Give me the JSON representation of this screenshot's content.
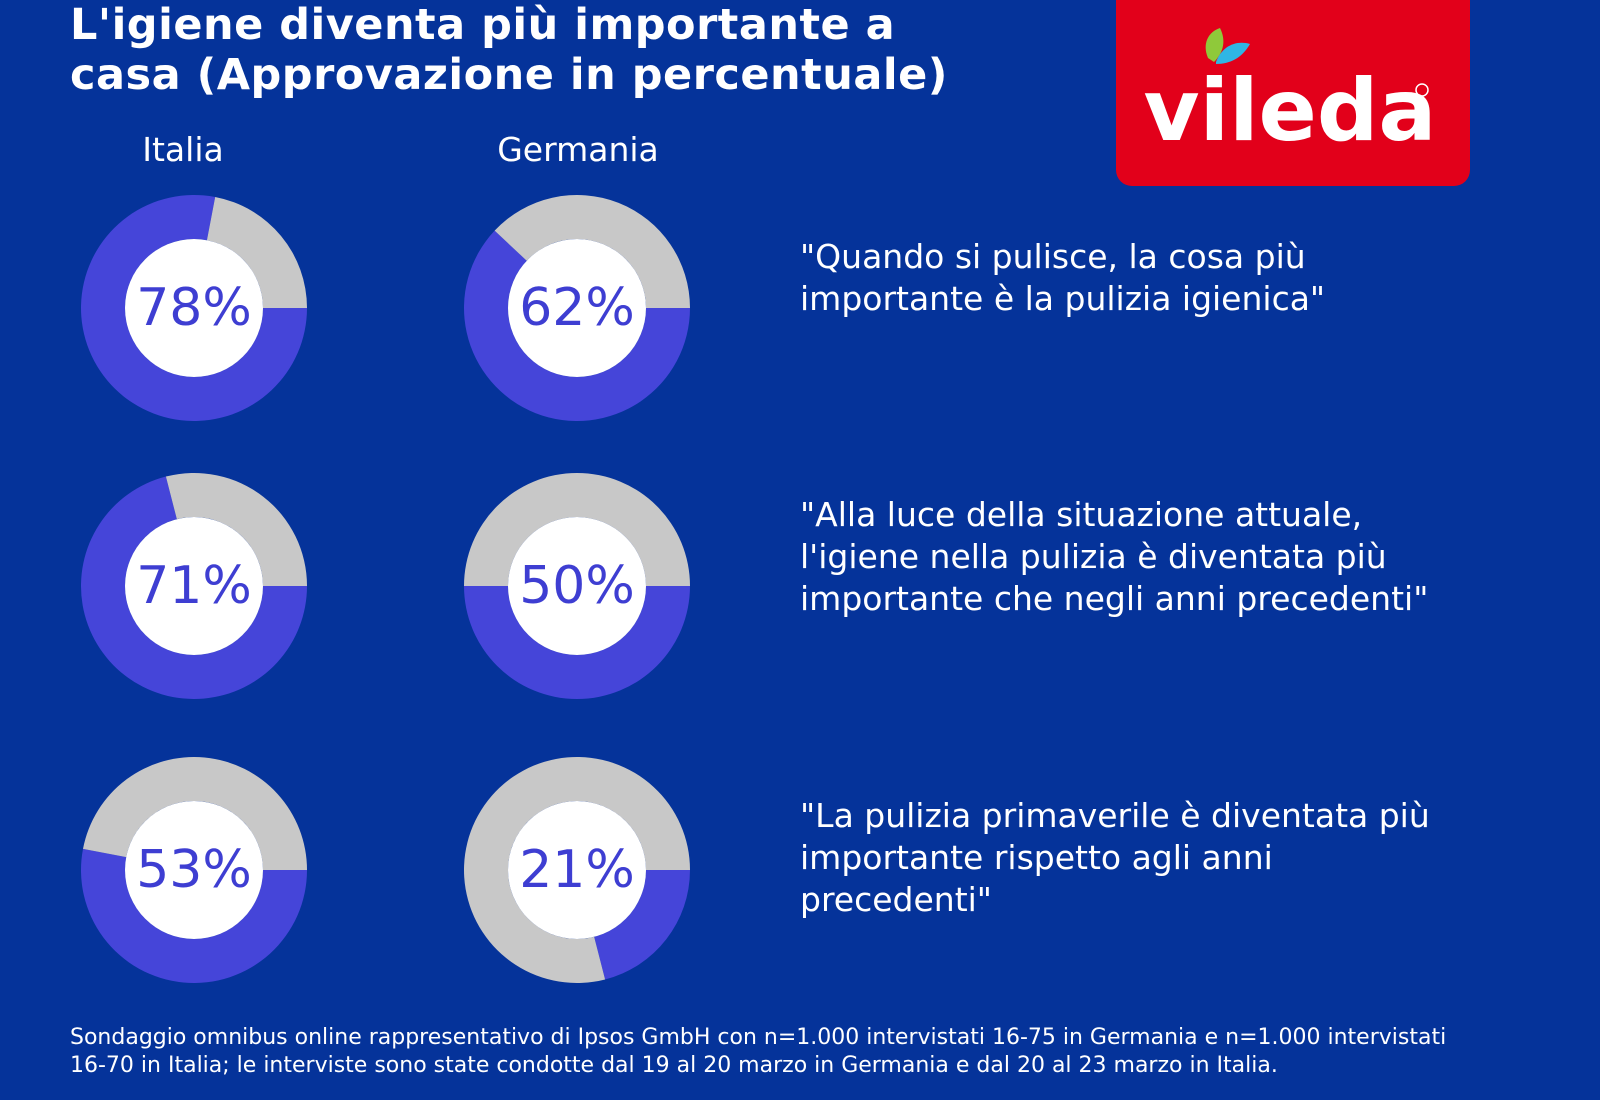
{
  "title": {
    "line1": "L'igiene diventa più importante a",
    "line2": "casa (Approvazione in percentuale)"
  },
  "logo": {
    "text": "vileda"
  },
  "colors": {
    "background": "#05339a",
    "agree": "#4545d9",
    "disagree": "#c8c8c8",
    "center": "#ffffff",
    "percent_text": "#3e3ed2",
    "logo_bg": "#e2001a"
  },
  "chart_data": {
    "type": "donut",
    "columns": [
      "Italia",
      "Germania"
    ],
    "rows": [
      {
        "statement": "\"Quando si pulisce, la cosa più importante è la pulizia igienica\"",
        "values": [
          78,
          62
        ],
        "labels": [
          "78%",
          "62%"
        ]
      },
      {
        "statement": "\"Alla luce della situazione attuale, l'igiene nella pulizia è diventata più importante che negli anni precedenti\"",
        "values": [
          71,
          50
        ],
        "labels": [
          "71%",
          "50%"
        ]
      },
      {
        "statement": "\"La pulizia primaverile è diventata più importante rispetto agli anni precedenti\"",
        "values": [
          53,
          21
        ],
        "labels": [
          "53%",
          "21%"
        ]
      }
    ]
  },
  "footnote": "Sondaggio omnibus online rappresentativo di Ipsos GmbH con n=1.000 intervistati 16-75 in Germania e n=1.000 intervistati 16-70 in Italia; le interviste sono state condotte dal 19 al 20 marzo in Germania e dal 20 al 23 marzo in Italia."
}
